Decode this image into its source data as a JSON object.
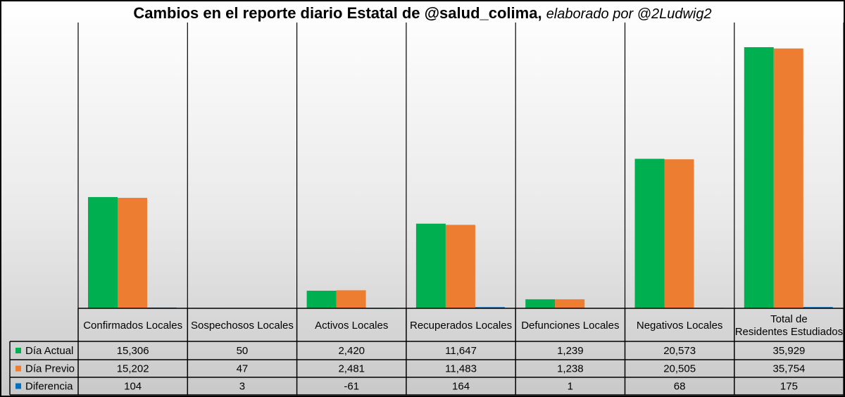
{
  "title": {
    "main": "Cambios en el reporte diario Estatal de @salud_colima,",
    "byline": "elaborado por @2Ludwig2"
  },
  "chart_data": {
    "type": "bar",
    "categories": [
      "Confirmados Locales",
      "Sospechosos Locales",
      "Activos Locales",
      "Recuperados Locales",
      "Defunciones Locales",
      "Negativos Locales",
      "Total de Residentes Estudiados"
    ],
    "series": [
      {
        "name": "Día Actual",
        "color": "#00b050",
        "values": [
          15306,
          50,
          2420,
          11647,
          1239,
          20573,
          35929
        ],
        "labels": [
          "15,306",
          "50",
          "2,420",
          "11,647",
          "1,239",
          "20,573",
          "35,929"
        ]
      },
      {
        "name": "Día Previo",
        "color": "#ed7d31",
        "values": [
          15202,
          47,
          2481,
          11483,
          1238,
          20505,
          35754
        ],
        "labels": [
          "15,202",
          "47",
          "2,481",
          "11,483",
          "1,238",
          "20,505",
          "35,754"
        ]
      },
      {
        "name": "Diferencia",
        "color": "#0070c0",
        "values": [
          104,
          3,
          -61,
          164,
          1,
          68,
          175
        ],
        "labels": [
          "104",
          "3",
          "-61",
          "164",
          "1",
          "68",
          "175"
        ]
      }
    ],
    "ylim": [
      0,
      40000
    ],
    "grid": false,
    "legend": "data-table-left"
  }
}
